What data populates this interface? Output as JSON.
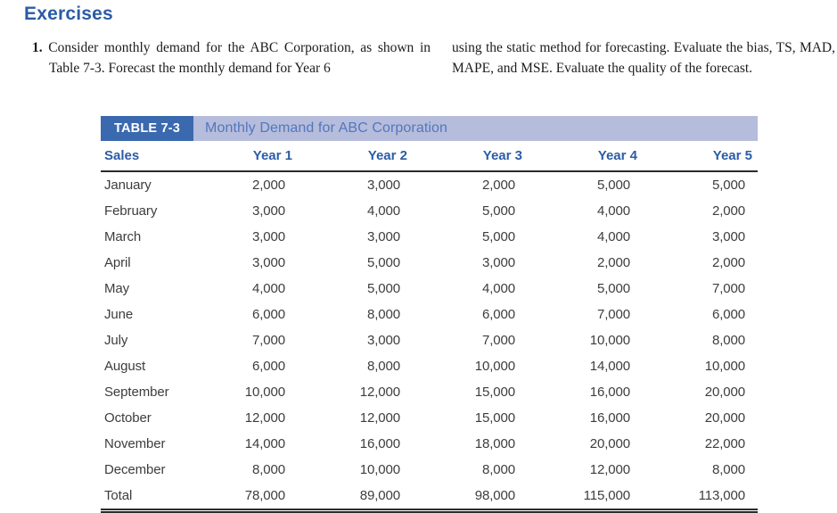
{
  "page": {
    "heading": "Exercises",
    "exercise": {
      "number": "1.",
      "text_left": "Consider monthly demand for the ABC Corporation, as shown in Table 7-3. Forecast the monthly demand for Year 6",
      "text_right": "using the static method for forecasting. Evaluate the bias, TS, MAD, MAPE, and MSE. Evaluate the quality of the forecast."
    }
  },
  "table": {
    "label": "TABLE 7-3",
    "title": "Monthly Demand for ABC Corporation",
    "columns": [
      "Sales",
      "Year 1",
      "Year 2",
      "Year 3",
      "Year 4",
      "Year 5"
    ],
    "rows": [
      {
        "label": "January",
        "values": [
          "2,000",
          "3,000",
          "2,000",
          "5,000",
          "5,000"
        ]
      },
      {
        "label": "February",
        "values": [
          "3,000",
          "4,000",
          "5,000",
          "4,000",
          "2,000"
        ]
      },
      {
        "label": "March",
        "values": [
          "3,000",
          "3,000",
          "5,000",
          "4,000",
          "3,000"
        ]
      },
      {
        "label": "April",
        "values": [
          "3,000",
          "5,000",
          "3,000",
          "2,000",
          "2,000"
        ]
      },
      {
        "label": "May",
        "values": [
          "4,000",
          "5,000",
          "4,000",
          "5,000",
          "7,000"
        ]
      },
      {
        "label": "June",
        "values": [
          "6,000",
          "8,000",
          "6,000",
          "7,000",
          "6,000"
        ]
      },
      {
        "label": "July",
        "values": [
          "7,000",
          "3,000",
          "7,000",
          "10,000",
          "8,000"
        ]
      },
      {
        "label": "August",
        "values": [
          "6,000",
          "8,000",
          "10,000",
          "14,000",
          "10,000"
        ]
      },
      {
        "label": "September",
        "values": [
          "10,000",
          "12,000",
          "15,000",
          "16,000",
          "20,000"
        ]
      },
      {
        "label": "October",
        "values": [
          "12,000",
          "12,000",
          "15,000",
          "16,000",
          "20,000"
        ]
      },
      {
        "label": "November",
        "values": [
          "14,000",
          "16,000",
          "18,000",
          "20,000",
          "22,000"
        ]
      },
      {
        "label": "December",
        "values": [
          "8,000",
          "10,000",
          "8,000",
          "12,000",
          "8,000"
        ]
      },
      {
        "label": "Total",
        "values": [
          "78,000",
          "89,000",
          "98,000",
          "115,000",
          "113,000"
        ]
      }
    ]
  },
  "colors": {
    "accent_blue": "#2b5ca7",
    "table_label_bg": "#3b69af",
    "table_band_bg": "#b6bcdc",
    "table_band_title_text": "#5377bc",
    "body_text": "#3d3d3d"
  }
}
